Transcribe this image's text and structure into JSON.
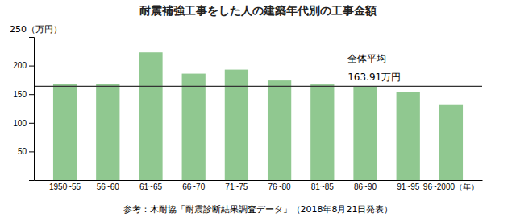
{
  "chart_data": {
    "type": "bar",
    "title": "耐震補強工事をした人の建築年代別の工事金額",
    "ylabel": "250（万円）",
    "categories": [
      "1950~55",
      "56~60",
      "61~65",
      "66~70",
      "71~75",
      "76~80",
      "81~85",
      "86~90",
      "91~95",
      "96~2000（年）"
    ],
    "values": [
      168,
      168,
      223,
      186,
      193,
      174,
      167,
      163,
      154,
      131
    ],
    "color": "#90c890",
    "average_line": {
      "value": 163.91,
      "labels": [
        "全体平均",
        "163.91万円"
      ]
    },
    "ylim": [
      0,
      250
    ],
    "yticks": [
      50,
      100,
      150,
      200
    ],
    "grid": false,
    "footer": "参考：木耐協「耐震診断結果調査データ」（2018年8月21日発表）"
  }
}
